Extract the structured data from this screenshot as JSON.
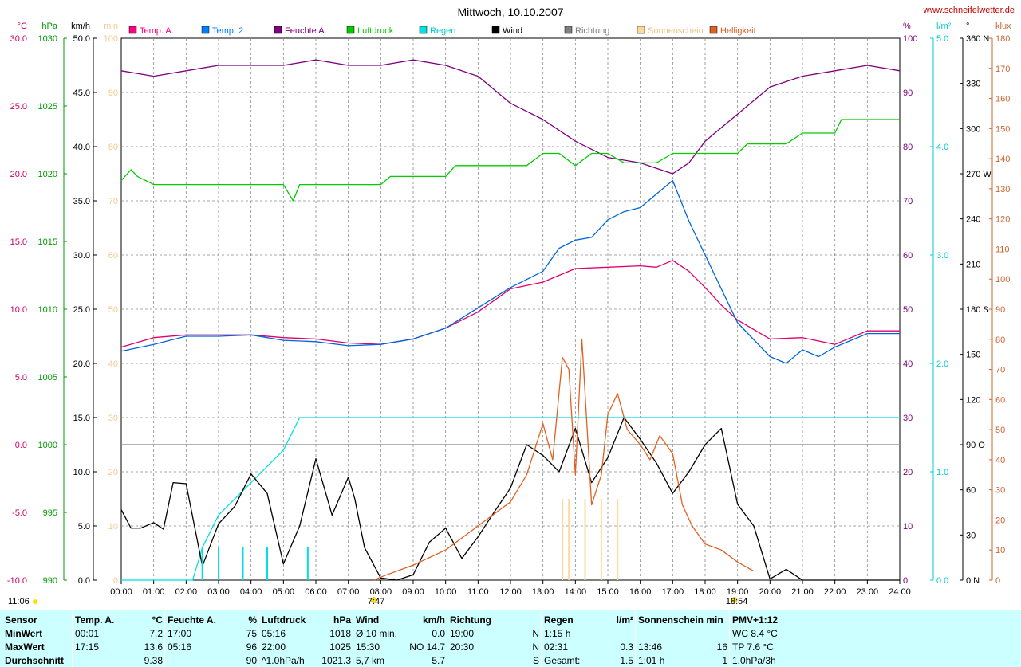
{
  "chart_data": {
    "type": "line",
    "title": "Mittwoch, 10.10.2007",
    "watermark": "www.schneifelwetter.de",
    "sunrise": "7:47",
    "sunset": "18:54",
    "footer_time": "11:06",
    "xlim": [
      0,
      24
    ],
    "x_ticks": [
      "00:00",
      "01:00",
      "02:00",
      "03:00",
      "04:00",
      "05:00",
      "06:00",
      "07:00",
      "08:00",
      "09:00",
      "10:00",
      "11:00",
      "12:00",
      "13:00",
      "14:00",
      "15:00",
      "16:00",
      "17:00",
      "18:00",
      "19:00",
      "20:00",
      "21:00",
      "22:00",
      "23:00",
      "24:00"
    ],
    "axes": [
      {
        "id": "temp",
        "unit": "°C",
        "color": "#cc0066",
        "ylim": [
          -10,
          30
        ],
        "ticks": [
          "30.0",
          "25.0",
          "20.0",
          "15.0",
          "10.0",
          "5.0",
          "0.0",
          "-5.0",
          "-10.0"
        ]
      },
      {
        "id": "press",
        "unit": "hPa",
        "color": "#009900",
        "ylim": [
          990,
          1030
        ],
        "ticks": [
          "1030",
          "1025",
          "1020",
          "1015",
          "1010",
          "1005",
          "1000",
          "995",
          "990"
        ]
      },
      {
        "id": "wind",
        "unit": "km/h",
        "color": "#000000",
        "ylim": [
          0,
          50
        ],
        "ticks": [
          "50.0",
          "45.0",
          "40.0",
          "35.0",
          "30.0",
          "25.0",
          "20.0",
          "15.0",
          "10.0",
          "5.0",
          "0.0"
        ]
      },
      {
        "id": "sun",
        "unit": "min",
        "color": "#f5c890",
        "ylim": [
          0,
          100
        ],
        "ticks": [
          "100",
          "90",
          "80",
          "70",
          "60",
          "50",
          "40",
          "30",
          "20",
          "10",
          "0"
        ]
      },
      {
        "id": "hum",
        "unit": "%",
        "color": "#800080",
        "ylim": [
          0,
          100
        ],
        "ticks": [
          "100",
          "90",
          "80",
          "70",
          "60",
          "50",
          "40",
          "30",
          "20",
          "10",
          "0"
        ]
      },
      {
        "id": "rain",
        "unit": "l/m²",
        "color": "#00cccc",
        "ylim": [
          0,
          5
        ],
        "ticks": [
          "5.0",
          "4.0",
          "3.0",
          "2.0",
          "1.0",
          "0.0"
        ]
      },
      {
        "id": "dir",
        "unit": "°",
        "color": "#000000",
        "ylim": [
          0,
          360
        ],
        "ticks": [
          "360 N",
          "330",
          "300",
          "270 W",
          "240",
          "210",
          "180 S",
          "150",
          "120",
          "90 O",
          "60",
          "30",
          "0 N"
        ]
      },
      {
        "id": "lux",
        "unit": "klux",
        "color": "#cc6633",
        "ylim": [
          0,
          180
        ],
        "ticks": [
          "180",
          "170",
          "160",
          "150",
          "140",
          "130",
          "120",
          "110",
          "100",
          "90",
          "80",
          "70",
          "60",
          "50",
          "40",
          "30",
          "20",
          "10",
          "0"
        ]
      }
    ],
    "legend": [
      {
        "name": "Temp. A.",
        "color": "#ff0080"
      },
      {
        "name": "Temp. 2",
        "color": "#0080ff"
      },
      {
        "name": "Feuchte A.",
        "color": "#800080"
      },
      {
        "name": "Luftdruck",
        "color": "#00cc00"
      },
      {
        "name": "Regen",
        "color": "#00e0e0"
      },
      {
        "name": "Wind",
        "color": "#000000"
      },
      {
        "name": "Richtung",
        "color": "#808080"
      },
      {
        "name": "Sonnenschein",
        "color": "#ffd8a0"
      },
      {
        "name": "Helligkeit",
        "color": "#e06020"
      }
    ],
    "series": [
      {
        "name": "Temp. A.",
        "axis": "temp",
        "color": "#e0006c",
        "x": [
          0,
          1,
          2,
          3,
          4,
          5,
          6,
          7,
          8,
          9,
          10,
          11,
          12,
          13,
          13.5,
          14,
          15,
          16,
          16.5,
          17,
          17.5,
          18,
          18.5,
          19,
          20,
          21,
          22,
          23,
          24
        ],
        "y": [
          7.2,
          7.9,
          8.1,
          8.1,
          8.1,
          7.9,
          7.8,
          7.5,
          7.4,
          7.8,
          8.6,
          9.8,
          11.5,
          12.0,
          12.5,
          13.0,
          13.1,
          13.2,
          13.1,
          13.6,
          12.8,
          11.6,
          10.3,
          9.2,
          7.8,
          7.9,
          7.4,
          8.4,
          8.4
        ]
      },
      {
        "name": "Temp. 2",
        "axis": "temp",
        "color": "#0066dd",
        "x": [
          0,
          1,
          2,
          3,
          4,
          5,
          6,
          7,
          8,
          9,
          10,
          11,
          12,
          13,
          13.5,
          14,
          14.5,
          15,
          15.5,
          16,
          16.5,
          17,
          17.5,
          18,
          18.5,
          19,
          20,
          20.5,
          21,
          21.5,
          22,
          23,
          24
        ],
        "y": [
          6.9,
          7.4,
          8.0,
          8.0,
          8.1,
          7.7,
          7.6,
          7.3,
          7.4,
          7.8,
          8.6,
          10.1,
          11.6,
          12.8,
          14.5,
          15.1,
          15.3,
          16.6,
          17.2,
          17.5,
          18.5,
          19.5,
          16.5,
          14.0,
          11.5,
          9.0,
          6.5,
          6.0,
          7.0,
          6.5,
          7.2,
          8.2,
          8.2
        ]
      },
      {
        "name": "Feuchte A.",
        "axis": "hum",
        "color": "#800080",
        "x": [
          0,
          1,
          2,
          3,
          4,
          5,
          6,
          7,
          8,
          9,
          10,
          11,
          12,
          13,
          13.5,
          14,
          15,
          16,
          16.5,
          17,
          17.5,
          18,
          19,
          20,
          20.5,
          21,
          22,
          23,
          24
        ],
        "y": [
          94,
          93,
          94,
          95,
          95,
          95,
          96,
          95,
          95,
          96,
          95,
          93,
          88,
          85,
          83,
          81,
          78,
          77,
          76,
          75,
          77,
          81,
          86,
          91,
          92,
          93,
          94,
          95,
          94
        ]
      },
      {
        "name": "Luftdruck",
        "axis": "press",
        "color": "#00cc00",
        "x": [
          0,
          0.3,
          0.5,
          1,
          2,
          3,
          4,
          5,
          5.3,
          5.5,
          6,
          7,
          8,
          8.3,
          9,
          10,
          10.3,
          11,
          12,
          12.5,
          13,
          13.5,
          14,
          14.5,
          15,
          15.5,
          16,
          16.5,
          17,
          18,
          19,
          19.3,
          20,
          20.5,
          21,
          21.5,
          22,
          22.2,
          23,
          24
        ],
        "y": [
          1019.5,
          1020.3,
          1019.8,
          1019.2,
          1019.2,
          1019.2,
          1019.2,
          1019.2,
          1018,
          1019.2,
          1019.2,
          1019.2,
          1019.2,
          1019.8,
          1019.8,
          1019.8,
          1020.6,
          1020.6,
          1020.6,
          1020.6,
          1021.5,
          1021.5,
          1020.6,
          1021.5,
          1021.5,
          1020.8,
          1020.8,
          1020.8,
          1021.5,
          1021.5,
          1021.5,
          1022.2,
          1022.2,
          1022.2,
          1023,
          1023,
          1023,
          1024,
          1024,
          1024
        ]
      },
      {
        "name": "Regen",
        "axis": "rain",
        "color": "#00e0e0",
        "x": [
          0,
          2,
          2.2,
          2.5,
          3,
          4,
          5,
          5.5,
          6,
          6.5,
          7,
          24
        ],
        "y": [
          0,
          0,
          0,
          0.3,
          0.6,
          0.9,
          1.2,
          1.5,
          1.5,
          1.5,
          1.5,
          1.5
        ]
      },
      {
        "name": "Wind",
        "axis": "wind",
        "color": "#000000",
        "x": [
          0,
          0.3,
          0.6,
          1,
          1.3,
          1.6,
          2,
          2.5,
          3,
          3.5,
          4,
          4.5,
          5,
          5.5,
          6,
          6.5,
          7,
          7.2,
          7.5,
          8,
          8.5,
          9,
          9.5,
          10,
          10.5,
          11,
          11.5,
          12,
          12.5,
          13,
          13.5,
          14,
          14.5,
          15,
          15.5,
          16,
          16.5,
          17,
          17.5,
          18,
          18.5,
          19,
          19.5,
          20,
          20.5,
          21,
          22,
          23,
          24
        ],
        "y": [
          6.5,
          4.8,
          4.8,
          5.3,
          4.7,
          9.0,
          8.9,
          1.3,
          5.2,
          6.8,
          9.8,
          8.0,
          1.5,
          5.0,
          11.2,
          6.0,
          9.5,
          7.5,
          3.0,
          0.2,
          0.0,
          0.5,
          3.5,
          4.8,
          2.0,
          4.0,
          6.3,
          8.5,
          12.5,
          11.5,
          10.0,
          14.0,
          9.0,
          11.3,
          15.0,
          13.0,
          10.8,
          8.0,
          10.0,
          12.5,
          14.0,
          7.0,
          5.0,
          0.1,
          1.0,
          0.0,
          0.0,
          0.0,
          0.0
        ]
      },
      {
        "name": "Helligkeit",
        "axis": "lux",
        "color": "#e06020",
        "x": [
          7.8,
          8,
          9,
          10,
          11,
          12,
          12.5,
          13,
          13.3,
          13.6,
          13.8,
          14,
          14.2,
          14.5,
          14.8,
          15,
          15.3,
          15.6,
          16,
          16.3,
          16.6,
          17,
          17.3,
          17.6,
          18,
          18.5,
          19,
          19.5
        ],
        "y": [
          0,
          1,
          5,
          10,
          18,
          26,
          35,
          52,
          40,
          74,
          70,
          35,
          80,
          25,
          35,
          55,
          62,
          50,
          45,
          40,
          48,
          42,
          25,
          18,
          12,
          10,
          6,
          3
        ]
      },
      {
        "name": "Sonnenschein",
        "axis": "sun",
        "color": "#ffd8a0",
        "type": "bar",
        "x": [
          13.6,
          13.8,
          14.3,
          14.8,
          15.3
        ],
        "y": [
          15,
          15,
          15,
          15,
          15
        ]
      }
    ]
  },
  "stats": {
    "sensor": {
      "header": "Sensor",
      "rows": [
        "MinWert",
        "MaxWert",
        "Durchschnitt"
      ]
    },
    "temp": {
      "header": "Temp. A.",
      "unit": "°C",
      "times": [
        "00:01",
        "17:15",
        ""
      ],
      "values": [
        "7.2",
        "13.6",
        "9.38"
      ]
    },
    "hum": {
      "header": "Feuchte A.",
      "unit": "%",
      "times": [
        "17:00",
        "05:16",
        ""
      ],
      "values": [
        "75",
        "96",
        "90"
      ]
    },
    "press": {
      "header": "Luftdruck",
      "unit": "hPa",
      "times": [
        "05:16",
        "22:00",
        "^1.0hPa/h"
      ],
      "values": [
        "1018",
        "1025",
        "1021.3"
      ]
    },
    "wind": {
      "header": "Wind",
      "unit": "km/h",
      "times": [
        "Ø 10 min.",
        "15:30",
        "5,7 km"
      ],
      "values": [
        "0.0",
        "NO 14.7",
        "5.7"
      ]
    },
    "dir": {
      "header": "Richtung",
      "times": [
        "19:00",
        "20:30",
        ""
      ],
      "values": [
        "N",
        "N",
        "S"
      ]
    },
    "rain": {
      "header": "Regen",
      "unit": "l/m²",
      "times": [
        "1:15 h",
        "02:31",
        "Gesamt:"
      ],
      "values": [
        "",
        "0.3",
        "1.5"
      ]
    },
    "sun": {
      "header": "Sonnenschein min",
      "times": [
        "",
        "13:46",
        "1:01 h"
      ],
      "values": [
        "",
        "16",
        "1"
      ]
    },
    "pmv": {
      "header": "PMV+1:12",
      "rows": [
        "WC 8.4 °C",
        "TP 7.6 °C",
        "1.0hPa/3h"
      ]
    }
  }
}
